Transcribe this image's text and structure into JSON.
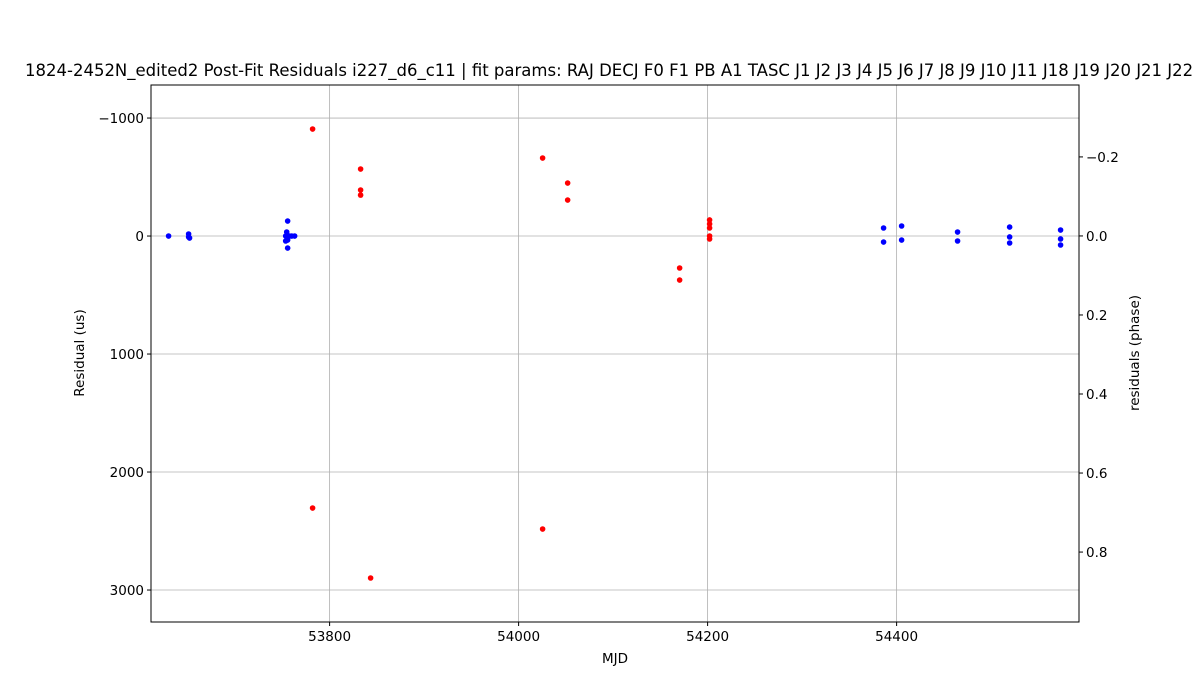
{
  "chart_data": {
    "type": "scatter",
    "title": "1824-2452N_edited2 Post-Fit Residuals i227_d6_c11 | fit params: RAJ DECJ F0 F1 PB A1 TASC J1 J2 J3 J4 J5 J6 J7 J8 J9 J10 J11 J18 J19 J20 J21 J22",
    "x_label": "MJD",
    "y_label": "Residual (us)",
    "y2_label": "residuals (phase)",
    "xlim": [
      53611,
      54593
    ],
    "xticks": [
      53800,
      54000,
      54200,
      54400
    ],
    "ylim": [
      -1280,
      3271
    ],
    "y_inverted": true,
    "yticks": [
      {
        "value": -1000,
        "label": "−1000"
      },
      0,
      1000,
      2000,
      3000
    ],
    "y2lim": [
      -0.382,
      0.977
    ],
    "y2ticks": [
      {
        "value": -0.2,
        "label": "−0.2"
      },
      {
        "value": 0,
        "label": "0.0"
      },
      0.2,
      0.4,
      0.6,
      0.8
    ],
    "grid": true,
    "series": [
      {
        "name": "blue",
        "color": "#0000ff",
        "x": [
          53629.6,
          53650.8,
          53650.8,
          53651.8,
          53755.6,
          53753.5,
          53754.6,
          53755.6,
          53757.7,
          53753.5,
          53755.6,
          53759.9,
          53763.0,
          54386.2,
          54386.2,
          54405.3,
          54405.3,
          54464.5,
          54464.5,
          54519.6,
          54519.6,
          54519.6,
          54573.5,
          54573.5,
          54573.5
        ],
        "values": [
          0,
          -17,
          8,
          17,
          -127,
          0,
          -34,
          34,
          0,
          42,
          102,
          0,
          0,
          -68,
          51,
          -85,
          34,
          -34,
          42,
          -76,
          8,
          59,
          -51,
          25,
          76
        ]
      },
      {
        "name": "red",
        "color": "#ff0000",
        "x": [
          53782.0,
          53782.0,
          53832.8,
          53832.8,
          53832.8,
          53843.4,
          54025.4,
          54025.4,
          54051.9,
          54051.9,
          54170.4,
          54170.4,
          54202.1,
          54202.1,
          54202.1,
          54202.1,
          54202.1
        ],
        "values": [
          -907,
          2305,
          -568,
          -390,
          -347,
          2898,
          -661,
          2483,
          -449,
          -305,
          271,
          373,
          -136,
          -102,
          -68,
          0,
          25
        ]
      }
    ]
  }
}
